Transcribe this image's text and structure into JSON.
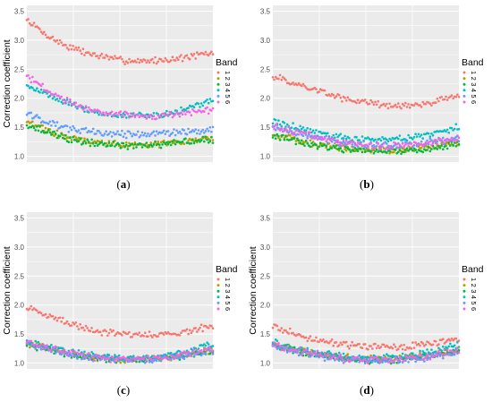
{
  "figure": {
    "panels": [
      {
        "caption_letter": "a"
      },
      {
        "caption_letter": "b"
      },
      {
        "caption_letter": "c"
      },
      {
        "caption_letter": "d"
      }
    ]
  },
  "colors": {
    "background": "#EBEBEB",
    "grid": "#FFFFFF",
    "band_1": "#F8766D",
    "band_2": "#B79F00",
    "band_3": "#00BA38",
    "band_4": "#00BFC4",
    "band_5": "#619CFF",
    "band_6": "#F564E3"
  },
  "chart_data": [
    {
      "type": "scatter",
      "panel": "a",
      "ylabel": "Correction coefficient",
      "xlabel": "",
      "ylim": [
        0.9,
        3.6
      ],
      "yticks": [
        "1.0",
        "1.5",
        "2.0",
        "2.5",
        "3.0",
        "3.5"
      ],
      "xlim": [
        0,
        1
      ],
      "grid": true,
      "legend": {
        "title": "Band",
        "entries": [
          "1",
          "2",
          "3",
          "4",
          "5",
          "6"
        ],
        "position": "right"
      },
      "series": [
        {
          "name": "1",
          "x": [
            0,
            0.1,
            0.2,
            0.3,
            0.4,
            0.5,
            0.6,
            0.7,
            0.8,
            0.9,
            1.0
          ],
          "y": [
            3.35,
            3.1,
            2.92,
            2.8,
            2.72,
            2.66,
            2.64,
            2.65,
            2.68,
            2.73,
            2.78
          ]
        },
        {
          "name": "2",
          "x": [
            0,
            0.1,
            0.2,
            0.3,
            0.4,
            0.5,
            0.6,
            0.7,
            0.8,
            0.9,
            1.0
          ],
          "y": [
            1.6,
            1.45,
            1.35,
            1.28,
            1.23,
            1.2,
            1.2,
            1.21,
            1.24,
            1.28,
            1.32
          ]
        },
        {
          "name": "3",
          "x": [
            0,
            0.1,
            0.2,
            0.3,
            0.4,
            0.5,
            0.6,
            0.7,
            0.8,
            0.9,
            1.0
          ],
          "y": [
            1.55,
            1.42,
            1.32,
            1.25,
            1.21,
            1.19,
            1.19,
            1.2,
            1.22,
            1.26,
            1.29
          ]
        },
        {
          "name": "4",
          "x": [
            0,
            0.1,
            0.2,
            0.3,
            0.4,
            0.5,
            0.6,
            0.7,
            0.8,
            0.9,
            1.0
          ],
          "y": [
            2.25,
            2.08,
            1.93,
            1.82,
            1.74,
            1.7,
            1.69,
            1.7,
            1.75,
            1.85,
            1.98
          ]
        },
        {
          "name": "5",
          "x": [
            0,
            0.1,
            0.2,
            0.3,
            0.4,
            0.5,
            0.6,
            0.7,
            0.8,
            0.9,
            1.0
          ],
          "y": [
            1.75,
            1.6,
            1.5,
            1.44,
            1.4,
            1.38,
            1.38,
            1.39,
            1.41,
            1.44,
            1.46
          ]
        },
        {
          "name": "6",
          "x": [
            0,
            0.1,
            0.2,
            0.3,
            0.4,
            0.5,
            0.6,
            0.7,
            0.8,
            0.9,
            1.0
          ],
          "y": [
            2.38,
            2.15,
            1.98,
            1.86,
            1.77,
            1.72,
            1.7,
            1.7,
            1.72,
            1.76,
            1.8
          ]
        }
      ]
    },
    {
      "type": "scatter",
      "panel": "b",
      "ylabel": "",
      "xlabel": "",
      "ylim": [
        0.9,
        3.6
      ],
      "yticks": [
        "1.0",
        "1.5",
        "2.0",
        "2.5",
        "3.0",
        "3.5"
      ],
      "xlim": [
        0,
        1
      ],
      "grid": true,
      "legend": {
        "title": "Band",
        "entries": [
          "1",
          "2",
          "3",
          "4",
          "5",
          "6"
        ],
        "position": "right"
      },
      "series": [
        {
          "name": "1",
          "x": [
            0,
            0.1,
            0.2,
            0.3,
            0.4,
            0.5,
            0.6,
            0.7,
            0.8,
            0.9,
            1.0
          ],
          "y": [
            2.37,
            2.27,
            2.17,
            2.07,
            1.98,
            1.92,
            1.88,
            1.87,
            1.9,
            1.96,
            2.05
          ]
        },
        {
          "name": "2",
          "x": [
            0,
            0.1,
            0.2,
            0.3,
            0.4,
            0.5,
            0.6,
            0.7,
            0.8,
            0.9,
            1.0
          ],
          "y": [
            1.38,
            1.3,
            1.23,
            1.17,
            1.13,
            1.11,
            1.1,
            1.11,
            1.14,
            1.18,
            1.24
          ]
        },
        {
          "name": "3",
          "x": [
            0,
            0.1,
            0.2,
            0.3,
            0.4,
            0.5,
            0.6,
            0.7,
            0.8,
            0.9,
            1.0
          ],
          "y": [
            1.35,
            1.27,
            1.2,
            1.15,
            1.11,
            1.09,
            1.08,
            1.09,
            1.12,
            1.16,
            1.22
          ]
        },
        {
          "name": "4",
          "x": [
            0,
            0.1,
            0.2,
            0.3,
            0.4,
            0.5,
            0.6,
            0.7,
            0.8,
            0.9,
            1.0
          ],
          "y": [
            1.6,
            1.52,
            1.44,
            1.37,
            1.32,
            1.29,
            1.28,
            1.3,
            1.35,
            1.42,
            1.5
          ]
        },
        {
          "name": "5",
          "x": [
            0,
            0.1,
            0.2,
            0.3,
            0.4,
            0.5,
            0.6,
            0.7,
            0.8,
            0.9,
            1.0
          ],
          "y": [
            1.5,
            1.42,
            1.34,
            1.28,
            1.23,
            1.2,
            1.19,
            1.2,
            1.23,
            1.27,
            1.31
          ]
        },
        {
          "name": "6",
          "x": [
            0,
            0.1,
            0.2,
            0.3,
            0.4,
            0.5,
            0.6,
            0.7,
            0.8,
            0.9,
            1.0
          ],
          "y": [
            1.52,
            1.43,
            1.35,
            1.28,
            1.22,
            1.19,
            1.18,
            1.19,
            1.22,
            1.26,
            1.3
          ]
        }
      ]
    },
    {
      "type": "scatter",
      "panel": "c",
      "ylabel": "Correction coefficient",
      "xlabel": "",
      "ylim": [
        0.9,
        3.6
      ],
      "yticks": [
        "1.0",
        "1.5",
        "2.0",
        "2.5",
        "3.0",
        "3.5"
      ],
      "xlim": [
        0,
        1
      ],
      "grid": true,
      "legend": {
        "title": "Band",
        "entries": [
          "1",
          "2",
          "3",
          "4",
          "5",
          "6"
        ],
        "position": "right"
      },
      "series": [
        {
          "name": "1",
          "x": [
            0,
            0.1,
            0.2,
            0.3,
            0.4,
            0.5,
            0.6,
            0.7,
            0.8,
            0.9,
            1.0
          ],
          "y": [
            1.95,
            1.83,
            1.72,
            1.62,
            1.54,
            1.49,
            1.48,
            1.49,
            1.52,
            1.58,
            1.63
          ]
        },
        {
          "name": "2",
          "x": [
            0,
            0.1,
            0.2,
            0.3,
            0.4,
            0.5,
            0.6,
            0.7,
            0.8,
            0.9,
            1.0
          ],
          "y": [
            1.35,
            1.26,
            1.18,
            1.12,
            1.08,
            1.07,
            1.07,
            1.09,
            1.12,
            1.17,
            1.22
          ]
        },
        {
          "name": "3",
          "x": [
            0,
            0.1,
            0.2,
            0.3,
            0.4,
            0.5,
            0.6,
            0.7,
            0.8,
            0.9,
            1.0
          ],
          "y": [
            1.33,
            1.24,
            1.17,
            1.11,
            1.07,
            1.06,
            1.06,
            1.08,
            1.11,
            1.16,
            1.22
          ]
        },
        {
          "name": "4",
          "x": [
            0,
            0.1,
            0.2,
            0.3,
            0.4,
            0.5,
            0.6,
            0.7,
            0.8,
            0.9,
            1.0
          ],
          "y": [
            1.38,
            1.29,
            1.21,
            1.15,
            1.11,
            1.09,
            1.09,
            1.11,
            1.16,
            1.23,
            1.33
          ]
        },
        {
          "name": "5",
          "x": [
            0,
            0.1,
            0.2,
            0.3,
            0.4,
            0.5,
            0.6,
            0.7,
            0.8,
            0.9,
            1.0
          ],
          "y": [
            1.34,
            1.25,
            1.17,
            1.11,
            1.07,
            1.05,
            1.05,
            1.07,
            1.1,
            1.15,
            1.21
          ]
        },
        {
          "name": "6",
          "x": [
            0,
            0.1,
            0.2,
            0.3,
            0.4,
            0.5,
            0.6,
            0.7,
            0.8,
            0.9,
            1.0
          ],
          "y": [
            1.36,
            1.27,
            1.19,
            1.13,
            1.09,
            1.07,
            1.07,
            1.09,
            1.12,
            1.18,
            1.24
          ]
        }
      ]
    },
    {
      "type": "scatter",
      "panel": "d",
      "ylabel": "Correction coefficient",
      "xlabel": "",
      "ylim": [
        0.9,
        3.6
      ],
      "yticks": [
        "1.0",
        "1.5",
        "2.0",
        "2.5",
        "3.0",
        "3.5"
      ],
      "xlim": [
        0,
        1
      ],
      "grid": true,
      "legend": {
        "title": "Band",
        "entries": [
          "1",
          "2",
          "3",
          "4",
          "5",
          "6"
        ],
        "position": "right"
      },
      "series": [
        {
          "name": "1",
          "x": [
            0,
            0.1,
            0.2,
            0.3,
            0.4,
            0.5,
            0.6,
            0.7,
            0.8,
            0.9,
            1.0
          ],
          "y": [
            1.63,
            1.52,
            1.43,
            1.36,
            1.31,
            1.28,
            1.27,
            1.28,
            1.31,
            1.36,
            1.42
          ]
        },
        {
          "name": "2",
          "x": [
            0,
            0.1,
            0.2,
            0.3,
            0.4,
            0.5,
            0.6,
            0.7,
            0.8,
            0.9,
            1.0
          ],
          "y": [
            1.33,
            1.25,
            1.18,
            1.13,
            1.09,
            1.07,
            1.07,
            1.08,
            1.12,
            1.17,
            1.23
          ]
        },
        {
          "name": "3",
          "x": [
            0,
            0.1,
            0.2,
            0.3,
            0.4,
            0.5,
            0.6,
            0.7,
            0.8,
            0.9,
            1.0
          ],
          "y": [
            1.31,
            1.23,
            1.16,
            1.11,
            1.07,
            1.05,
            1.05,
            1.07,
            1.11,
            1.17,
            1.24
          ]
        },
        {
          "name": "4",
          "x": [
            0,
            0.1,
            0.2,
            0.3,
            0.4,
            0.5,
            0.6,
            0.7,
            0.8,
            0.9,
            1.0
          ],
          "y": [
            1.35,
            1.27,
            1.2,
            1.15,
            1.11,
            1.09,
            1.09,
            1.11,
            1.16,
            1.23,
            1.32
          ]
        },
        {
          "name": "5",
          "x": [
            0,
            0.1,
            0.2,
            0.3,
            0.4,
            0.5,
            0.6,
            0.7,
            0.8,
            0.9,
            1.0
          ],
          "y": [
            1.3,
            1.22,
            1.15,
            1.1,
            1.06,
            1.04,
            1.04,
            1.05,
            1.08,
            1.13,
            1.19
          ]
        },
        {
          "name": "6",
          "x": [
            0,
            0.1,
            0.2,
            0.3,
            0.4,
            0.5,
            0.6,
            0.7,
            0.8,
            0.9,
            1.0
          ],
          "y": [
            1.32,
            1.24,
            1.17,
            1.12,
            1.08,
            1.06,
            1.06,
            1.07,
            1.1,
            1.15,
            1.21
          ]
        }
      ]
    }
  ]
}
